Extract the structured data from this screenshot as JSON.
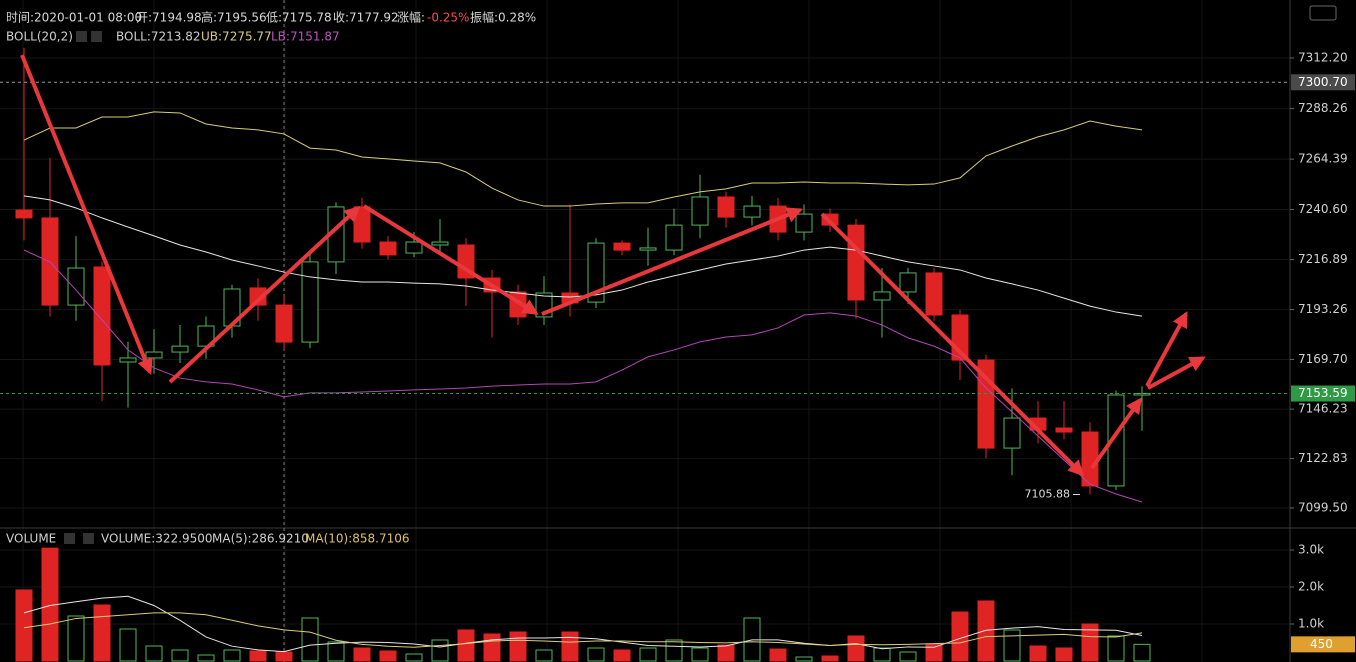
{
  "chart_data": [
    {
      "type": "candlestick",
      "header": [
        "时间:2020-01-01 08:00",
        "开:7194.98",
        "高:7195.56",
        "低:7175.78",
        "收:7177.92",
        "涨幅:",
        "-0.25%",
        "振幅:0.28%"
      ],
      "legend": [
        "BOLL(20,2)",
        "BOLL:7213.82",
        "UB:7275.77",
        "LB:7151.87"
      ],
      "up_color": "#4fb85a",
      "down_color": "#e02424",
      "grid": true,
      "candles": {
        "open": [
          7240.3,
          7236.6,
          7195.4,
          7213.4,
          7168.5,
          7170.4,
          7173.2,
          7176.0,
          7185.5,
          7203.5,
          7195.4,
          7177.9,
          7215.8,
          7241.8,
          7225.2,
          7220.0,
          7223.8,
          7223.8,
          7208.2,
          7201.6,
          7189.8,
          7201.1,
          7196.8,
          7224.7,
          7221.4,
          7221.4,
          7233.2,
          7246.5,
          7237.0,
          7242.2,
          7229.9,
          7238.4,
          7233.2,
          7197.8,
          7201.6,
          7210.6,
          7190.7,
          7169.4,
          7127.8,
          7142.0,
          7137.3,
          7135.4,
          7109.9,
          7152.9
        ],
        "high": [
          7317,
          7265,
          7228,
          7216,
          7178,
          7184,
          7186,
          7190,
          7205,
          7208,
          7200,
          7220,
          7244,
          7246,
          7228,
          7230,
          7236,
          7227,
          7212,
          7205,
          7209,
          7243,
          7227,
          7226,
          7232,
          7241,
          7257,
          7249,
          7247,
          7246,
          7243,
          7241,
          7236,
          7213,
          7213,
          7213,
          7193,
          7172,
          7156,
          7150,
          7150,
          7140,
          7155,
          7157
        ],
        "low": [
          7226,
          7190,
          7188,
          7150,
          7147,
          7163,
          7168,
          7170,
          7180,
          7188,
          7174,
          7175,
          7210,
          7222,
          7217,
          7218,
          7220,
          7195,
          7180,
          7186,
          7186,
          7190,
          7194,
          7219,
          7214,
          7219,
          7227,
          7232,
          7233,
          7226,
          7226,
          7230,
          7189,
          7180,
          7196,
          7188,
          7160,
          7123,
          7115,
          7130,
          7132,
          7105.88,
          7108,
          7136
        ],
        "close": [
          7236.6,
          7195.4,
          7212.9,
          7167.1,
          7170.4,
          7173.2,
          7176.0,
          7185.5,
          7203.0,
          7195.4,
          7177.9,
          7215.8,
          7241.8,
          7225.2,
          7219.1,
          7225.2,
          7225.2,
          7208.2,
          7201.6,
          7189.8,
          7201.1,
          7196.4,
          7224.7,
          7221.4,
          7222.4,
          7233.2,
          7246.5,
          7237.0,
          7242.2,
          7229.9,
          7238.4,
          7233.2,
          7197.8,
          7201.6,
          7210.6,
          7190.7,
          7169.4,
          7127.8,
          7142.0,
          7136.3,
          7135.4,
          7109.9,
          7152.9,
          7153.59
        ]
      },
      "overlays": [
        {
          "color": "#d9cd7a",
          "values": [
            7273.4,
            7279.1,
            7279.1,
            7284.3,
            7284.3,
            7286.7,
            7286.2,
            7281.0,
            7279.1,
            7278.2,
            7276.3,
            7269.6,
            7268.7,
            7265.4,
            7264.5,
            7263.5,
            7262.6,
            7258.3,
            7250.7,
            7245.1,
            7242.2,
            7242.2,
            7243.2,
            7243.7,
            7243.7,
            7246.5,
            7248.9,
            7250.3,
            7253.1,
            7253.1,
            7253.6,
            7253.1,
            7253.1,
            7252.6,
            7252.2,
            7252.6,
            7255.5,
            7265.9,
            7270.6,
            7274.9,
            7278.2,
            7282.4,
            7280.0,
            7278.2
          ]
        },
        {
          "color": "#e6e6e6",
          "values": [
            7247.0,
            7245.1,
            7241.3,
            7236.6,
            7232.3,
            7228.1,
            7223.8,
            7220.5,
            7216.7,
            7213.9,
            7211.0,
            7208.7,
            7207.3,
            7206.3,
            7206.3,
            7205.8,
            7205.4,
            7204.4,
            7202.5,
            7201.1,
            7199.7,
            7199.2,
            7200.2,
            7202.5,
            7206.3,
            7209.2,
            7212.0,
            7214.8,
            7216.7,
            7218.6,
            7221.4,
            7222.8,
            7221.4,
            7218.6,
            7215.8,
            7213.9,
            7212.0,
            7208.2,
            7205.4,
            7202.5,
            7198.7,
            7194.9,
            7192.1,
            7190.2
          ]
        },
        {
          "color": "#b446b4",
          "values": [
            7221.4,
            7215.8,
            7202.5,
            7188.4,
            7174.2,
            7165.7,
            7160.9,
            7159.1,
            7158.1,
            7155.3,
            7152.0,
            7153.9,
            7153.9,
            7154.3,
            7154.8,
            7155.3,
            7155.7,
            7156.2,
            7157.1,
            7157.6,
            7158.1,
            7158.1,
            7159.1,
            7164.7,
            7170.9,
            7174.2,
            7178.0,
            7180.3,
            7181.3,
            7184.6,
            7190.7,
            7191.7,
            7190.2,
            7186.0,
            7179.9,
            7176.0,
            7170.4,
            7156.2,
            7144.9,
            7133.5,
            7122.1,
            7110.8,
            7106.1,
            7102.3
          ]
        }
      ],
      "low_label": {
        "value": 7105.88,
        "label": "7105.88"
      },
      "price_lines": [
        {
          "value": 7300.7,
          "label": "7300.70",
          "color": "#4a4a4a"
        },
        {
          "value": 7153.59,
          "label": "7153.59",
          "color": "#2f9a44"
        }
      ],
      "ylim": [
        7090.5,
        7339.6
      ],
      "yticks": [
        {
          "value": 7312.2,
          "label": "7312.20"
        },
        7288.26,
        7264.39,
        {
          "value": 7240.6,
          "label": "7240.60"
        },
        7216.89,
        7193.26,
        {
          "value": 7169.7,
          "label": "7169.70"
        },
        7146.23,
        7122.83,
        {
          "value": 7099.5,
          "label": "7099.50"
        }
      ]
    },
    {
      "type": "bar",
      "legend": [
        "VOLUME",
        "VOLUME:322.9500",
        "MA(5):286.9210",
        "MA(10):858.7106"
      ],
      "values": [
        1920,
        3050,
        1216,
        1514,
        865,
        405,
        297,
        162,
        297,
        270,
        243,
        1162,
        514,
        351,
        270,
        189,
        568,
        838,
        730,
        784,
        297,
        784,
        351,
        297,
        351,
        568,
        351,
        432,
        1162,
        324,
        108,
        135,
        676,
        351,
        243,
        459,
        1324,
        1622,
        838,
        405,
        351,
        1000,
        676,
        450
      ],
      "series": [
        {
          "color": "#e6e6e6",
          "values": [
            1300,
            1500,
            1600,
            1700,
            1750,
            1500,
            1100,
            650,
            400,
            300,
            255,
            430,
            480,
            510,
            500,
            460,
            380,
            480,
            570,
            620,
            620,
            640,
            600,
            510,
            420,
            400,
            380,
            410,
            570,
            570,
            480,
            420,
            470,
            330,
            380,
            370,
            610,
            830,
            890,
            930,
            850,
            840,
            830,
            690
          ]
        },
        {
          "color": "#d9cd7a",
          "values": [
            900,
            1000,
            1150,
            1200,
            1250,
            1300,
            1300,
            1250,
            1100,
            950,
            840,
            780,
            560,
            450,
            400,
            370,
            420,
            470,
            540,
            560,
            540,
            510,
            540,
            540,
            520,
            520,
            500,
            490,
            520,
            500,
            460,
            420,
            450,
            440,
            450,
            470,
            490,
            660,
            680,
            700,
            720,
            660,
            650,
            760
          ]
        }
      ],
      "current": {
        "value": 450,
        "color": "#e0a030"
      },
      "ylim": [
        0,
        3540
      ],
      "yticks": [
        {
          "value": 3000,
          "label": "3.0k"
        },
        {
          "value": 2000,
          "label": "2.0k"
        },
        {
          "value": 1000,
          "label": "1.0k"
        }
      ]
    }
  ]
}
